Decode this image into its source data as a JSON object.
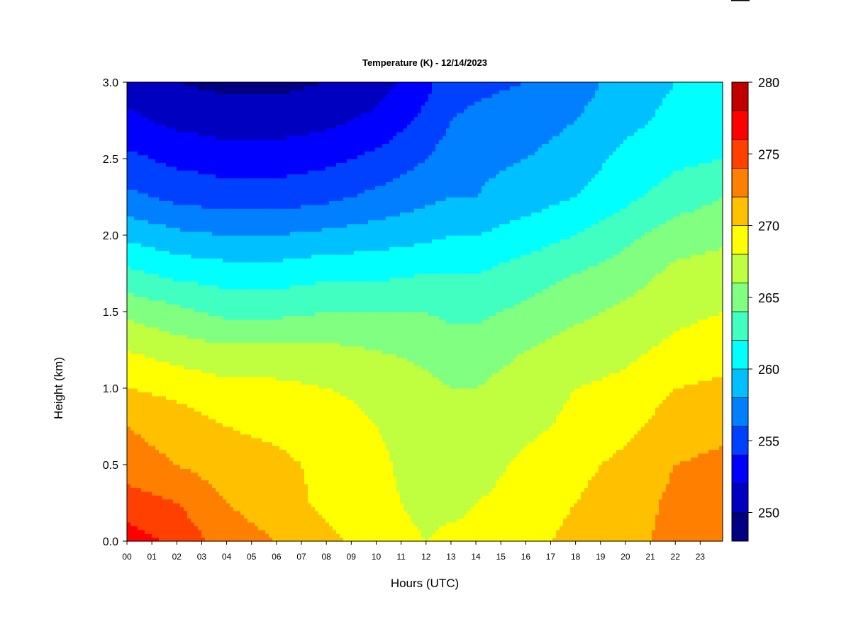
{
  "chart_data": {
    "type": "heatmap",
    "title": "Temperature (K) - 12/14/2023",
    "xlabel": "Hours (UTC)",
    "ylabel": "Height (km)",
    "xlim": [
      0,
      23.9
    ],
    "ylim": [
      0,
      3.0
    ],
    "x_ticks": [
      "00",
      "01",
      "02",
      "03",
      "04",
      "05",
      "06",
      "07",
      "08",
      "09",
      "10",
      "11",
      "12",
      "13",
      "14",
      "15",
      "16",
      "17",
      "18",
      "19",
      "20",
      "21",
      "22",
      "23"
    ],
    "y_ticks": [
      "0.0",
      "0.5",
      "1.0",
      "1.5",
      "2.0",
      "2.5",
      "3.0"
    ],
    "y_tick_values": [
      0,
      0.5,
      1.0,
      1.5,
      2.0,
      2.5,
      3.0
    ],
    "colorbar": {
      "ticks": [
        "250",
        "255",
        "260",
        "265",
        "270",
        "275",
        "280"
      ],
      "tick_values": [
        250,
        255,
        260,
        265,
        270,
        275,
        280
      ],
      "range": [
        248,
        280
      ],
      "levels": [
        248,
        250,
        252,
        254,
        256,
        258,
        260,
        262,
        264,
        266,
        268,
        270,
        272,
        274,
        276,
        278,
        280
      ],
      "colors": [
        "#000080",
        "#0000c0",
        "#0000ff",
        "#0040ff",
        "#0080ff",
        "#00c0ff",
        "#00ffff",
        "#40ffc0",
        "#80ff80",
        "#c0ff40",
        "#ffff00",
        "#ffc000",
        "#ff8000",
        "#ff4000",
        "#ff0000",
        "#c00000"
      ]
    },
    "hours": [
      0,
      2,
      4,
      6,
      8,
      10,
      12,
      13,
      14,
      16,
      18,
      20,
      22,
      23.9
    ],
    "heights_km": [
      0,
      0.25,
      0.5,
      0.75,
      1.0,
      1.25,
      1.5,
      1.75,
      2.0,
      2.25,
      2.5,
      2.75,
      3.0
    ],
    "temperature_K": [
      [
        277,
        275.5,
        273,
        272,
        270.5,
        269,
        268,
        268.5,
        268.5,
        269.5,
        270.5,
        271.5,
        272.5,
        273
      ],
      [
        275,
        274,
        272,
        271,
        269.5,
        268.5,
        267.5,
        267.5,
        268,
        269,
        270,
        271,
        272.5,
        273
      ],
      [
        273,
        272,
        271,
        270.5,
        269.5,
        268.5,
        267,
        266.5,
        267,
        268.5,
        269.5,
        270.5,
        272,
        272.5
      ],
      [
        272,
        271,
        270,
        269.5,
        269,
        268,
        267,
        266.5,
        266.5,
        267.5,
        268.5,
        269.5,
        271,
        271.5
      ],
      [
        270,
        269.5,
        268.5,
        268.5,
        268,
        267.5,
        266.5,
        266,
        266,
        267,
        268,
        268.5,
        270,
        270.5
      ],
      [
        268,
        267,
        266.5,
        266.5,
        266.5,
        266,
        265.5,
        265,
        265,
        266,
        267,
        267.5,
        268.5,
        269
      ],
      [
        265.5,
        264.5,
        263.5,
        263.5,
        264,
        264,
        264,
        263.5,
        263.5,
        264.5,
        265.5,
        266.5,
        267.5,
        268
      ],
      [
        262.5,
        261.5,
        261,
        261,
        261.5,
        261.5,
        262,
        262,
        262,
        263,
        264,
        265,
        266.5,
        267
      ],
      [
        259.5,
        258.5,
        258,
        258,
        258.5,
        259,
        259.5,
        260,
        260,
        261,
        262,
        263.5,
        265,
        265.5
      ],
      [
        256.5,
        255.5,
        255,
        255,
        255.5,
        256.5,
        257.5,
        258,
        258,
        259,
        260,
        261.5,
        263,
        264
      ],
      [
        254.5,
        253.5,
        253,
        253,
        253.5,
        254.5,
        256,
        257,
        257.5,
        258,
        259,
        260.5,
        261.5,
        262
      ],
      [
        252.5,
        251.5,
        251,
        251,
        251.5,
        252.5,
        254.5,
        256,
        256.5,
        257,
        258,
        259.5,
        260.5,
        261
      ],
      [
        251,
        250,
        249.5,
        249.5,
        250,
        251,
        253.5,
        255,
        255.5,
        256,
        257,
        259,
        260,
        260.5
      ]
    ]
  }
}
